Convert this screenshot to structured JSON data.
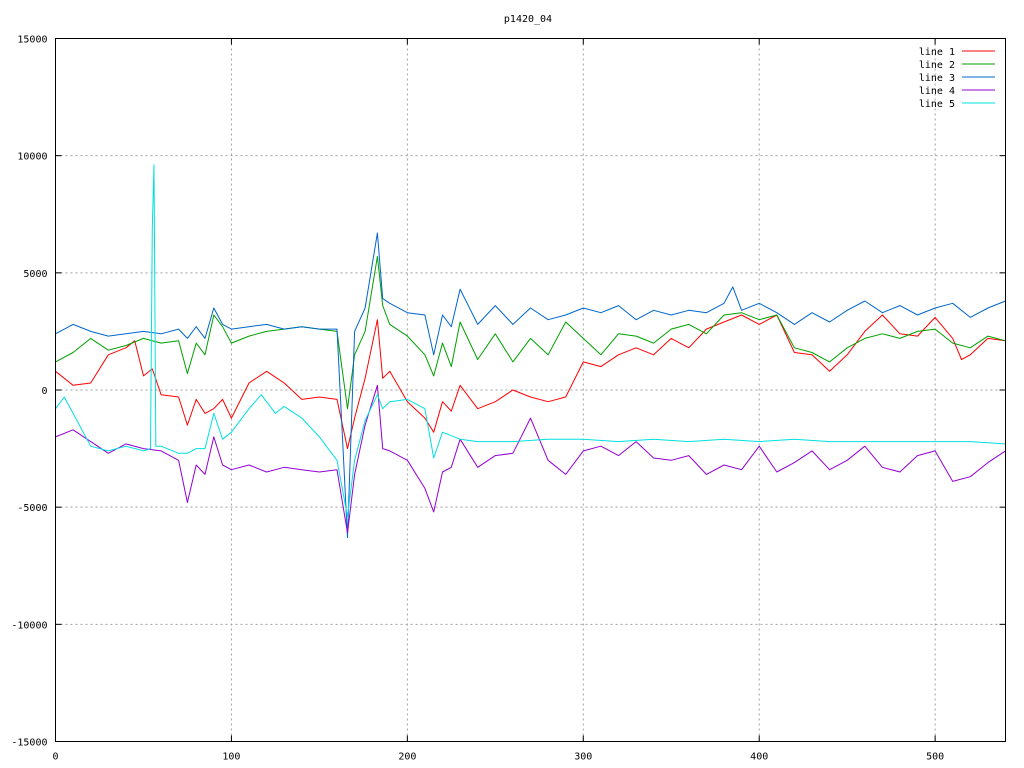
{
  "chart_data": {
    "type": "line",
    "title": "p1420_04",
    "xlabel": "",
    "ylabel": "",
    "xlim": [
      0,
      540
    ],
    "ylim": [
      -15000,
      15000
    ],
    "x_ticks": [
      0,
      100,
      200,
      300,
      400,
      500
    ],
    "y_ticks": [
      -15000,
      -10000,
      -5000,
      0,
      5000,
      10000,
      15000
    ],
    "grid": true,
    "legend_position": "top-right",
    "series": [
      {
        "name": "line 1",
        "color": "#ff0000",
        "points": [
          [
            0,
            800
          ],
          [
            10,
            200
          ],
          [
            20,
            300
          ],
          [
            30,
            1500
          ],
          [
            40,
            1800
          ],
          [
            45,
            2100
          ],
          [
            50,
            600
          ],
          [
            55,
            900
          ],
          [
            60,
            -200
          ],
          [
            70,
            -300
          ],
          [
            75,
            -1500
          ],
          [
            80,
            -400
          ],
          [
            85,
            -1000
          ],
          [
            90,
            -800
          ],
          [
            95,
            -400
          ],
          [
            100,
            -1200
          ],
          [
            110,
            300
          ],
          [
            120,
            800
          ],
          [
            130,
            300
          ],
          [
            140,
            -400
          ],
          [
            150,
            -300
          ],
          [
            160,
            -400
          ],
          [
            166,
            -2500
          ],
          [
            170,
            -1200
          ],
          [
            176,
            500
          ],
          [
            183,
            3000
          ],
          [
            186,
            500
          ],
          [
            190,
            800
          ],
          [
            200,
            -500
          ],
          [
            210,
            -1200
          ],
          [
            215,
            -1800
          ],
          [
            220,
            -500
          ],
          [
            225,
            -900
          ],
          [
            230,
            200
          ],
          [
            240,
            -800
          ],
          [
            250,
            -500
          ],
          [
            260,
            0
          ],
          [
            270,
            -300
          ],
          [
            280,
            -500
          ],
          [
            290,
            -300
          ],
          [
            300,
            1200
          ],
          [
            310,
            1000
          ],
          [
            320,
            1500
          ],
          [
            330,
            1800
          ],
          [
            340,
            1500
          ],
          [
            350,
            2200
          ],
          [
            360,
            1800
          ],
          [
            370,
            2600
          ],
          [
            380,
            2900
          ],
          [
            390,
            3200
          ],
          [
            400,
            2800
          ],
          [
            410,
            3200
          ],
          [
            420,
            1600
          ],
          [
            430,
            1500
          ],
          [
            440,
            800
          ],
          [
            450,
            1500
          ],
          [
            460,
            2500
          ],
          [
            470,
            3200
          ],
          [
            480,
            2400
          ],
          [
            490,
            2300
          ],
          [
            500,
            3100
          ],
          [
            510,
            2200
          ],
          [
            515,
            1300
          ],
          [
            520,
            1500
          ],
          [
            530,
            2200
          ],
          [
            540,
            2100
          ]
        ]
      },
      {
        "name": "line 2",
        "color": "#00a000",
        "points": [
          [
            0,
            1200
          ],
          [
            10,
            1600
          ],
          [
            20,
            2200
          ],
          [
            30,
            1700
          ],
          [
            40,
            1900
          ],
          [
            50,
            2200
          ],
          [
            60,
            2000
          ],
          [
            70,
            2100
          ],
          [
            75,
            700
          ],
          [
            80,
            2000
          ],
          [
            85,
            1500
          ],
          [
            90,
            3200
          ],
          [
            95,
            2700
          ],
          [
            100,
            2000
          ],
          [
            110,
            2300
          ],
          [
            120,
            2500
          ],
          [
            130,
            2600
          ],
          [
            140,
            2700
          ],
          [
            150,
            2600
          ],
          [
            160,
            2500
          ],
          [
            166,
            -800
          ],
          [
            170,
            1500
          ],
          [
            176,
            2500
          ],
          [
            183,
            5700
          ],
          [
            186,
            3600
          ],
          [
            190,
            2800
          ],
          [
            200,
            2300
          ],
          [
            210,
            1500
          ],
          [
            215,
            600
          ],
          [
            220,
            2000
          ],
          [
            225,
            1000
          ],
          [
            230,
            2900
          ],
          [
            240,
            1300
          ],
          [
            250,
            2400
          ],
          [
            260,
            1200
          ],
          [
            270,
            2200
          ],
          [
            280,
            1500
          ],
          [
            290,
            2900
          ],
          [
            300,
            2200
          ],
          [
            310,
            1500
          ],
          [
            320,
            2400
          ],
          [
            330,
            2300
          ],
          [
            340,
            2000
          ],
          [
            350,
            2600
          ],
          [
            360,
            2800
          ],
          [
            370,
            2400
          ],
          [
            380,
            3200
          ],
          [
            390,
            3300
          ],
          [
            400,
            3000
          ],
          [
            410,
            3200
          ],
          [
            420,
            1800
          ],
          [
            430,
            1600
          ],
          [
            440,
            1200
          ],
          [
            450,
            1800
          ],
          [
            460,
            2200
          ],
          [
            470,
            2400
          ],
          [
            480,
            2200
          ],
          [
            490,
            2500
          ],
          [
            500,
            2600
          ],
          [
            510,
            2000
          ],
          [
            520,
            1800
          ],
          [
            530,
            2300
          ],
          [
            540,
            2100
          ]
        ]
      },
      {
        "name": "line 3",
        "color": "#0066cc",
        "points": [
          [
            0,
            2400
          ],
          [
            10,
            2800
          ],
          [
            20,
            2500
          ],
          [
            30,
            2300
          ],
          [
            40,
            2400
          ],
          [
            50,
            2500
          ],
          [
            60,
            2400
          ],
          [
            70,
            2600
          ],
          [
            75,
            2200
          ],
          [
            80,
            2700
          ],
          [
            85,
            2200
          ],
          [
            90,
            3500
          ],
          [
            95,
            2800
          ],
          [
            100,
            2600
          ],
          [
            110,
            2700
          ],
          [
            120,
            2800
          ],
          [
            130,
            2600
          ],
          [
            140,
            2700
          ],
          [
            150,
            2600
          ],
          [
            160,
            2600
          ],
          [
            166,
            -6300
          ],
          [
            170,
            2500
          ],
          [
            176,
            3500
          ],
          [
            183,
            6700
          ],
          [
            186,
            3900
          ],
          [
            190,
            3700
          ],
          [
            200,
            3300
          ],
          [
            210,
            3200
          ],
          [
            215,
            1500
          ],
          [
            220,
            3200
          ],
          [
            225,
            2700
          ],
          [
            230,
            4300
          ],
          [
            240,
            2800
          ],
          [
            250,
            3600
          ],
          [
            260,
            2800
          ],
          [
            270,
            3500
          ],
          [
            280,
            3000
          ],
          [
            290,
            3200
          ],
          [
            300,
            3500
          ],
          [
            310,
            3300
          ],
          [
            320,
            3600
          ],
          [
            330,
            3000
          ],
          [
            340,
            3400
          ],
          [
            350,
            3200
          ],
          [
            360,
            3400
          ],
          [
            370,
            3300
          ],
          [
            380,
            3700
          ],
          [
            385,
            4400
          ],
          [
            390,
            3400
          ],
          [
            400,
            3700
          ],
          [
            410,
            3300
          ],
          [
            420,
            2800
          ],
          [
            430,
            3300
          ],
          [
            440,
            2900
          ],
          [
            450,
            3400
          ],
          [
            460,
            3800
          ],
          [
            470,
            3300
          ],
          [
            480,
            3600
          ],
          [
            490,
            3200
          ],
          [
            500,
            3500
          ],
          [
            510,
            3700
          ],
          [
            520,
            3100
          ],
          [
            530,
            3500
          ],
          [
            540,
            3800
          ]
        ]
      },
      {
        "name": "line 4",
        "color": "#9400d3",
        "points": [
          [
            0,
            -2000
          ],
          [
            10,
            -1700
          ],
          [
            20,
            -2200
          ],
          [
            30,
            -2700
          ],
          [
            40,
            -2300
          ],
          [
            50,
            -2500
          ],
          [
            60,
            -2600
          ],
          [
            70,
            -3000
          ],
          [
            75,
            -4800
          ],
          [
            80,
            -3200
          ],
          [
            85,
            -3600
          ],
          [
            90,
            -2000
          ],
          [
            95,
            -3200
          ],
          [
            100,
            -3400
          ],
          [
            110,
            -3200
          ],
          [
            120,
            -3500
          ],
          [
            130,
            -3300
          ],
          [
            140,
            -3400
          ],
          [
            150,
            -3500
          ],
          [
            160,
            -3400
          ],
          [
            166,
            -6100
          ],
          [
            170,
            -3600
          ],
          [
            176,
            -1500
          ],
          [
            183,
            200
          ],
          [
            186,
            -2500
          ],
          [
            190,
            -2600
          ],
          [
            200,
            -3000
          ],
          [
            210,
            -4200
          ],
          [
            215,
            -5200
          ],
          [
            220,
            -3500
          ],
          [
            225,
            -3300
          ],
          [
            230,
            -2100
          ],
          [
            240,
            -3300
          ],
          [
            250,
            -2800
          ],
          [
            260,
            -2700
          ],
          [
            270,
            -1200
          ],
          [
            280,
            -3000
          ],
          [
            290,
            -3600
          ],
          [
            300,
            -2600
          ],
          [
            310,
            -2400
          ],
          [
            320,
            -2800
          ],
          [
            330,
            -2200
          ],
          [
            340,
            -2900
          ],
          [
            350,
            -3000
          ],
          [
            360,
            -2800
          ],
          [
            370,
            -3600
          ],
          [
            380,
            -3200
          ],
          [
            390,
            -3400
          ],
          [
            400,
            -2400
          ],
          [
            410,
            -3500
          ],
          [
            420,
            -3100
          ],
          [
            430,
            -2600
          ],
          [
            440,
            -3400
          ],
          [
            450,
            -3000
          ],
          [
            460,
            -2400
          ],
          [
            470,
            -3300
          ],
          [
            480,
            -3500
          ],
          [
            490,
            -2800
          ],
          [
            500,
            -2600
          ],
          [
            510,
            -3900
          ],
          [
            520,
            -3700
          ],
          [
            530,
            -3100
          ],
          [
            540,
            -2600
          ]
        ]
      },
      {
        "name": "line 5",
        "color": "#00e0e0",
        "points": [
          [
            0,
            -800
          ],
          [
            5,
            -300
          ],
          [
            10,
            -1000
          ],
          [
            20,
            -2400
          ],
          [
            30,
            -2600
          ],
          [
            40,
            -2400
          ],
          [
            50,
            -2600
          ],
          [
            54,
            -2500
          ],
          [
            55,
            6900
          ],
          [
            56,
            9600
          ],
          [
            57,
            -2400
          ],
          [
            60,
            -2400
          ],
          [
            70,
            -2700
          ],
          [
            75,
            -2700
          ],
          [
            80,
            -2500
          ],
          [
            85,
            -2500
          ],
          [
            90,
            -1000
          ],
          [
            95,
            -2100
          ],
          [
            100,
            -1800
          ],
          [
            110,
            -800
          ],
          [
            117,
            -200
          ],
          [
            125,
            -1000
          ],
          [
            130,
            -700
          ],
          [
            140,
            -1200
          ],
          [
            150,
            -2000
          ],
          [
            160,
            -3000
          ],
          [
            166,
            -5400
          ],
          [
            170,
            -3000
          ],
          [
            176,
            -1300
          ],
          [
            183,
            -200
          ],
          [
            186,
            -800
          ],
          [
            190,
            -500
          ],
          [
            200,
            -400
          ],
          [
            210,
            -800
          ],
          [
            215,
            -2900
          ],
          [
            220,
            -1800
          ],
          [
            230,
            -2100
          ],
          [
            240,
            -2200
          ],
          [
            260,
            -2200
          ],
          [
            280,
            -2100
          ],
          [
            300,
            -2100
          ],
          [
            320,
            -2200
          ],
          [
            340,
            -2100
          ],
          [
            360,
            -2200
          ],
          [
            380,
            -2100
          ],
          [
            400,
            -2200
          ],
          [
            420,
            -2100
          ],
          [
            440,
            -2200
          ],
          [
            460,
            -2200
          ],
          [
            480,
            -2200
          ],
          [
            500,
            -2200
          ],
          [
            520,
            -2200
          ],
          [
            540,
            -2300
          ]
        ]
      }
    ]
  }
}
